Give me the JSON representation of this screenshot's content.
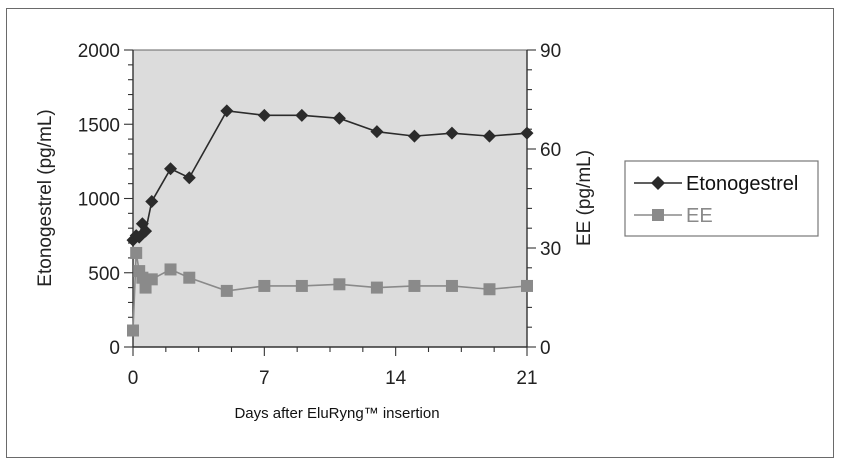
{
  "chart_data": {
    "type": "line",
    "xlabel": "Days after EluRyng™ insertion",
    "ylabel_left": "Etonogestrel (pg/mL)",
    "ylabel_right": "EE (pg/mL)",
    "xlim": [
      0,
      21
    ],
    "ylim_left": [
      0,
      2000
    ],
    "ylim_right": [
      0,
      90
    ],
    "x_ticks": [
      "0",
      "7",
      "14",
      "21"
    ],
    "y_ticks_left": [
      "0",
      "500",
      "1000",
      "1500",
      "2000"
    ],
    "y_ticks_right": [
      "0",
      "30",
      "60",
      "90"
    ],
    "grid": false,
    "legend_position": "right",
    "series": [
      {
        "name": "Etonogestrel",
        "axis": "left",
        "marker": "diamond",
        "color": "#2b2b2b",
        "x": [
          0,
          0.17,
          0.33,
          0.5,
          0.67,
          1,
          2,
          3,
          5,
          7,
          9,
          11,
          13,
          15,
          17,
          19,
          21
        ],
        "y": [
          720,
          750,
          740,
          830,
          780,
          980,
          1200,
          1140,
          1590,
          1560,
          1560,
          1540,
          1450,
          1420,
          1440,
          1420,
          1440
        ]
      },
      {
        "name": "EE",
        "axis": "right",
        "marker": "square",
        "color": "#8a8a8a",
        "x": [
          0,
          0.17,
          0.33,
          0.5,
          0.67,
          1,
          2,
          3,
          5,
          7,
          9,
          11,
          13,
          15,
          17,
          19,
          21
        ],
        "y": [
          5,
          28.5,
          23,
          21,
          18,
          20.5,
          23.5,
          21,
          17,
          18.5,
          18.5,
          19,
          18,
          18.5,
          18.5,
          17.5,
          18.5
        ]
      }
    ]
  },
  "colors": {
    "plot_background": "#dcdcdc",
    "etonogestrel": "#2b2b2b",
    "ee": "#8a8a8a"
  }
}
